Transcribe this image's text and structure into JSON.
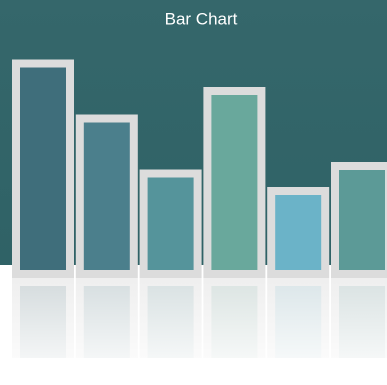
{
  "chart_data": {
    "type": "bar",
    "title": "Bar Chart",
    "values": [
      81,
      59,
      37,
      70,
      30,
      40
    ],
    "colors": [
      "#3f6e7b",
      "#4b7f8c",
      "#55949b",
      "#69a89c",
      "#6bb3c8",
      "#5c9a97"
    ]
  }
}
